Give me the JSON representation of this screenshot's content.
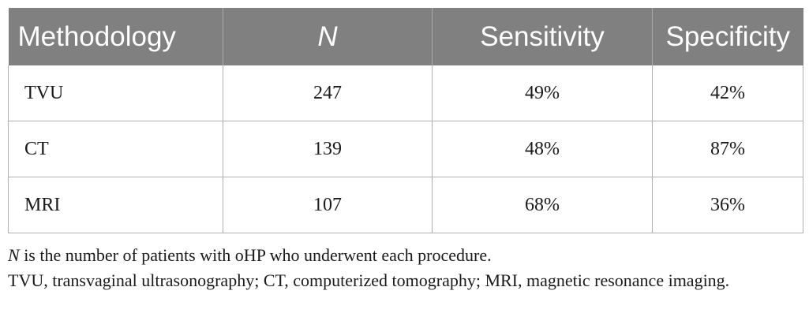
{
  "table": {
    "headers": [
      "Methodology",
      "N",
      "Sensitivity",
      "Specificity"
    ],
    "rows": [
      {
        "methodology": "TVU",
        "n": "247",
        "sensitivity": "49%",
        "specificity": "42%"
      },
      {
        "methodology": "CT",
        "n": "139",
        "sensitivity": "48%",
        "specificity": "87%"
      },
      {
        "methodology": "MRI",
        "n": "107",
        "sensitivity": "68%",
        "specificity": "36%"
      }
    ]
  },
  "notes": {
    "note1_symbol": "N",
    "note1_text": " is the number of patients with oHP who underwent each procedure.",
    "note2_text": "TVU, transvaginal ultrasonography; CT, computerized tomography; MRI, magnetic resonance imaging."
  },
  "colors": {
    "header_bg": "#808080",
    "header_text": "#ffffff",
    "grid": "#b0b0b0"
  }
}
